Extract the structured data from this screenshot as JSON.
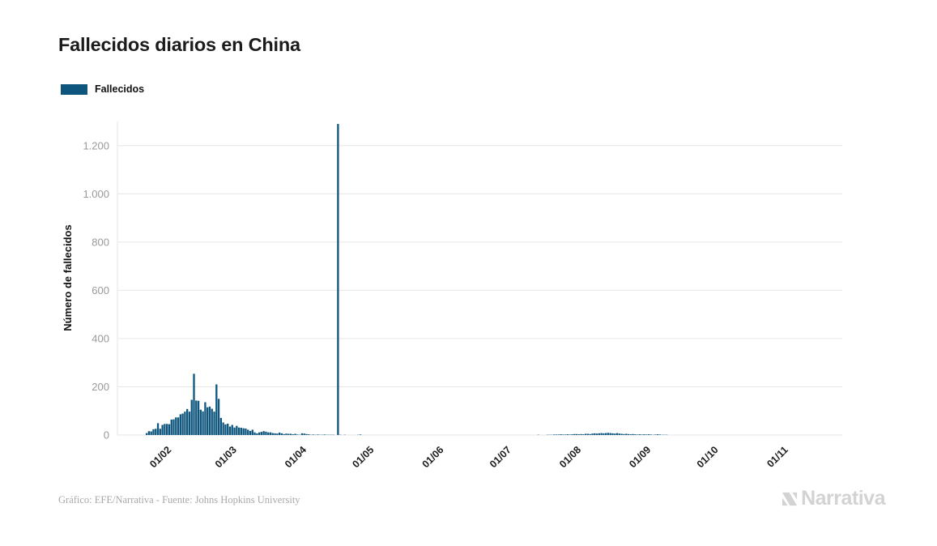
{
  "header": {
    "title": "Fallecidos diarios en China"
  },
  "legend": {
    "items": [
      {
        "label": "Fallecidos",
        "color": "#0f567e"
      }
    ]
  },
  "footer": {
    "credit": "Gráfico: EFE/Narrativa - Fuente: Johns Hopkins University",
    "brand": "Narrativa"
  },
  "colors": {
    "bar": "#0f567e",
    "grid": "#e6e6e6",
    "ytick_text": "#999999",
    "xtick_text": "#1c1c1c",
    "axis_title": "#111111"
  },
  "chart_data": {
    "type": "bar",
    "title": "Fallecidos diarios en China",
    "xlabel": "",
    "ylabel": "Número de fallecidos",
    "series_name": "Fallecidos",
    "grid": true,
    "legend_position": "top-left",
    "ylim": [
      0,
      1300
    ],
    "yticks": [
      0,
      200,
      400,
      600,
      800,
      1000,
      1200
    ],
    "ytick_labels": [
      "0",
      "200",
      "400",
      "600",
      "800",
      "1.000",
      "1.200"
    ],
    "x_domain": [
      "2020-01-10",
      "2020-11-27"
    ],
    "xticks": [
      "2020-02-01",
      "2020-03-01",
      "2020-04-01",
      "2020-05-01",
      "2020-06-01",
      "2020-07-01",
      "2020-08-01",
      "2020-09-01",
      "2020-10-01",
      "2020-11-01"
    ],
    "xtick_labels": [
      "01/02",
      "01/03",
      "01/04",
      "01/05",
      "01/06",
      "01/07",
      "01/08",
      "01/09",
      "01/10",
      "01/11"
    ],
    "peak_annotation": {
      "date": "2020-04-17",
      "value": 1290
    },
    "points": [
      [
        "2020-01-23",
        8
      ],
      [
        "2020-01-24",
        16
      ],
      [
        "2020-01-25",
        15
      ],
      [
        "2020-01-26",
        24
      ],
      [
        "2020-01-27",
        26
      ],
      [
        "2020-01-28",
        49
      ],
      [
        "2020-01-29",
        26
      ],
      [
        "2020-01-30",
        42
      ],
      [
        "2020-01-31",
        46
      ],
      [
        "2020-02-01",
        46
      ],
      [
        "2020-02-02",
        45
      ],
      [
        "2020-02-03",
        64
      ],
      [
        "2020-02-04",
        65
      ],
      [
        "2020-02-05",
        73
      ],
      [
        "2020-02-06",
        73
      ],
      [
        "2020-02-07",
        86
      ],
      [
        "2020-02-08",
        89
      ],
      [
        "2020-02-09",
        97
      ],
      [
        "2020-02-10",
        108
      ],
      [
        "2020-02-11",
        97
      ],
      [
        "2020-02-12",
        146
      ],
      [
        "2020-02-13",
        254
      ],
      [
        "2020-02-14",
        143
      ],
      [
        "2020-02-15",
        142
      ],
      [
        "2020-02-16",
        105
      ],
      [
        "2020-02-17",
        98
      ],
      [
        "2020-02-18",
        136
      ],
      [
        "2020-02-19",
        115
      ],
      [
        "2020-02-20",
        118
      ],
      [
        "2020-02-21",
        109
      ],
      [
        "2020-02-22",
        97
      ],
      [
        "2020-02-23",
        210
      ],
      [
        "2020-02-24",
        150
      ],
      [
        "2020-02-25",
        71
      ],
      [
        "2020-02-26",
        52
      ],
      [
        "2020-02-27",
        44
      ],
      [
        "2020-02-28",
        47
      ],
      [
        "2020-02-29",
        35
      ],
      [
        "2020-03-01",
        42
      ],
      [
        "2020-03-02",
        31
      ],
      [
        "2020-03-03",
        38
      ],
      [
        "2020-03-04",
        31
      ],
      [
        "2020-03-05",
        30
      ],
      [
        "2020-03-06",
        28
      ],
      [
        "2020-03-07",
        27
      ],
      [
        "2020-03-08",
        22
      ],
      [
        "2020-03-09",
        17
      ],
      [
        "2020-03-10",
        22
      ],
      [
        "2020-03-11",
        11
      ],
      [
        "2020-03-12",
        7
      ],
      [
        "2020-03-13",
        11
      ],
      [
        "2020-03-14",
        13
      ],
      [
        "2020-03-15",
        16
      ],
      [
        "2020-03-16",
        14
      ],
      [
        "2020-03-17",
        11
      ],
      [
        "2020-03-18",
        11
      ],
      [
        "2020-03-19",
        8
      ],
      [
        "2020-03-20",
        7
      ],
      [
        "2020-03-21",
        6
      ],
      [
        "2020-03-22",
        10
      ],
      [
        "2020-03-23",
        7
      ],
      [
        "2020-03-24",
        4
      ],
      [
        "2020-03-25",
        6
      ],
      [
        "2020-03-26",
        5
      ],
      [
        "2020-03-27",
        5
      ],
      [
        "2020-03-28",
        3
      ],
      [
        "2020-03-29",
        5
      ],
      [
        "2020-03-30",
        2
      ],
      [
        "2020-03-31",
        1
      ],
      [
        "2020-04-01",
        7
      ],
      [
        "2020-04-02",
        6
      ],
      [
        "2020-04-03",
        4
      ],
      [
        "2020-04-04",
        3
      ],
      [
        "2020-04-05",
        1
      ],
      [
        "2020-04-06",
        2
      ],
      [
        "2020-04-07",
        1
      ],
      [
        "2020-04-08",
        2
      ],
      [
        "2020-04-09",
        1
      ],
      [
        "2020-04-10",
        1
      ],
      [
        "2020-04-11",
        2
      ],
      [
        "2020-04-12",
        1
      ],
      [
        "2020-04-13",
        1
      ],
      [
        "2020-04-14",
        1
      ],
      [
        "2020-04-15",
        1
      ],
      [
        "2020-04-17",
        1290
      ],
      [
        "2020-04-18",
        1
      ],
      [
        "2020-04-20",
        1
      ],
      [
        "2020-04-26",
        1
      ],
      [
        "2020-04-27",
        2
      ],
      [
        "2020-07-15",
        1
      ],
      [
        "2020-07-19",
        1
      ],
      [
        "2020-07-20",
        1
      ],
      [
        "2020-07-21",
        1
      ],
      [
        "2020-07-22",
        2
      ],
      [
        "2020-07-23",
        2
      ],
      [
        "2020-07-24",
        2
      ],
      [
        "2020-07-25",
        3
      ],
      [
        "2020-07-26",
        2
      ],
      [
        "2020-07-27",
        2
      ],
      [
        "2020-07-28",
        3
      ],
      [
        "2020-07-29",
        2
      ],
      [
        "2020-07-30",
        3
      ],
      [
        "2020-07-31",
        4
      ],
      [
        "2020-08-01",
        4
      ],
      [
        "2020-08-02",
        3
      ],
      [
        "2020-08-03",
        4
      ],
      [
        "2020-08-04",
        3
      ],
      [
        "2020-08-05",
        5
      ],
      [
        "2020-08-06",
        5
      ],
      [
        "2020-08-07",
        4
      ],
      [
        "2020-08-08",
        6
      ],
      [
        "2020-08-09",
        7
      ],
      [
        "2020-08-10",
        6
      ],
      [
        "2020-08-11",
        7
      ],
      [
        "2020-08-12",
        8
      ],
      [
        "2020-08-13",
        7
      ],
      [
        "2020-08-14",
        8
      ],
      [
        "2020-08-15",
        9
      ],
      [
        "2020-08-16",
        8
      ],
      [
        "2020-08-17",
        7
      ],
      [
        "2020-08-18",
        6
      ],
      [
        "2020-08-19",
        8
      ],
      [
        "2020-08-20",
        6
      ],
      [
        "2020-08-21",
        5
      ],
      [
        "2020-08-22",
        4
      ],
      [
        "2020-08-23",
        5
      ],
      [
        "2020-08-24",
        4
      ],
      [
        "2020-08-25",
        3
      ],
      [
        "2020-08-26",
        4
      ],
      [
        "2020-08-27",
        3
      ],
      [
        "2020-08-28",
        2
      ],
      [
        "2020-08-29",
        3
      ],
      [
        "2020-08-30",
        2
      ],
      [
        "2020-08-31",
        3
      ],
      [
        "2020-09-01",
        2
      ],
      [
        "2020-09-02",
        3
      ],
      [
        "2020-09-03",
        2
      ],
      [
        "2020-09-04",
        1
      ],
      [
        "2020-09-05",
        2
      ],
      [
        "2020-09-06",
        3
      ],
      [
        "2020-09-07",
        2
      ],
      [
        "2020-09-08",
        1
      ],
      [
        "2020-09-09",
        1
      ],
      [
        "2020-09-10",
        1
      ]
    ]
  }
}
